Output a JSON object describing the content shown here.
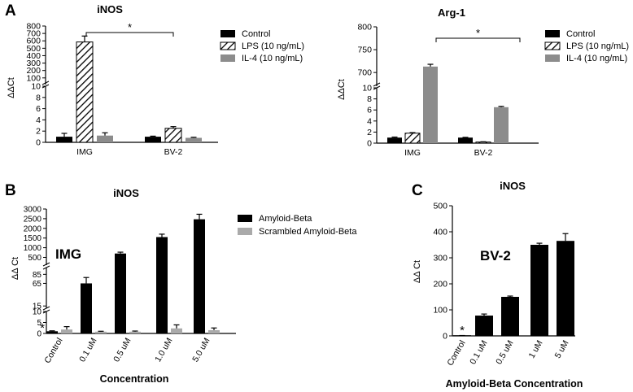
{
  "colors": {
    "black": "#000000",
    "grey": "#8c8c8c",
    "lightgrey": "#aaaaaa",
    "white": "#ffffff"
  },
  "chart_data": [
    {
      "panel": "A",
      "type": "bar",
      "title": "iNOS",
      "ylabel": "ΔΔCt",
      "categories": [
        "IMG",
        "BV-2"
      ],
      "series": [
        {
          "name": "Control",
          "style": "black",
          "values": [
            1.0,
            1.0
          ],
          "errors": [
            0.6,
            0.1
          ]
        },
        {
          "name": "LPS (10 ng/mL)",
          "style": "hatch",
          "values": [
            585,
            2.5
          ],
          "errors": [
            80,
            0.3
          ]
        },
        {
          "name": "IL-4 (10 ng/mL)",
          "style": "grey",
          "values": [
            1.2,
            0.8
          ],
          "errors": [
            0.5,
            0.1
          ]
        }
      ],
      "axis_segments": [
        {
          "range": [
            0,
            10
          ],
          "ticks": [
            0,
            2,
            4,
            6,
            8,
            10
          ]
        },
        {
          "range": [
            10,
            800
          ],
          "ticks": [
            100,
            200,
            300,
            400,
            500,
            600,
            700,
            800
          ]
        }
      ],
      "annotation": "*"
    },
    {
      "panel": "",
      "type": "bar",
      "title": "Arg-1",
      "ylabel": "ΔΔCt",
      "categories": [
        "IMG",
        "BV-2"
      ],
      "series": [
        {
          "name": "Control",
          "style": "black",
          "values": [
            1.0,
            1.0
          ],
          "errors": [
            0.1,
            0.05
          ]
        },
        {
          "name": "LPS (10 ng/mL)",
          "style": "hatch",
          "values": [
            1.8,
            0.2
          ],
          "errors": [
            0.1,
            0.05
          ]
        },
        {
          "name": "IL-4 (10 ng/mL)",
          "style": "grey",
          "values": [
            713,
            6.5
          ],
          "errors": [
            5,
            0.15
          ]
        }
      ],
      "axis_segments": [
        {
          "range": [
            0,
            10
          ],
          "ticks": [
            0,
            2,
            4,
            6,
            8,
            10
          ]
        },
        {
          "range": [
            10,
            800
          ],
          "ticks": [
            700,
            750,
            800
          ]
        }
      ],
      "annotation": "*"
    },
    {
      "panel": "B",
      "type": "bar",
      "title": "iNOS",
      "ylabel": "ΔΔ Ct",
      "xlabel": "Concentration",
      "cell_label": "IMG",
      "categories": [
        "Control",
        "0.1 uM",
        "0.5 uM",
        "1.0 uM",
        "5.0 uM"
      ],
      "series": [
        {
          "name": "Amyloid-Beta",
          "style": "black",
          "values": [
            1.0,
            65,
            700,
            1550,
            2470
          ],
          "errors": [
            0.2,
            13,
            70,
            150,
            260
          ]
        },
        {
          "name": "Scrambled Amyloid-Beta",
          "style": "lightgrey",
          "values": [
            1.8,
            0.8,
            0.8,
            2.3,
            1.5
          ],
          "errors": [
            1.3,
            0.2,
            0.3,
            1.6,
            1.0
          ]
        }
      ],
      "axis_segments": [
        {
          "range": [
            0,
            10
          ],
          "ticks": [
            0,
            5,
            10
          ]
        },
        {
          "range": [
            10,
            100
          ],
          "ticks": [
            15,
            65,
            85
          ]
        },
        {
          "range": [
            100,
            3000
          ],
          "ticks": [
            500,
            1000,
            1500,
            2000,
            2500,
            3000
          ]
        }
      ],
      "annotation": "*"
    },
    {
      "panel": "C",
      "type": "bar",
      "title": "iNOS",
      "ylabel": "ΔΔ Ct",
      "xlabel": "Amyloid-Beta Concentration",
      "cell_label": "BV-2",
      "categories": [
        "Control",
        "0.1 uM",
        "0.5 uM",
        "1 uM",
        "5 uM"
      ],
      "series": [
        {
          "name": "Amyloid-Beta",
          "style": "black",
          "values": [
            1.0,
            78,
            150,
            350,
            365
          ],
          "errors": [
            0.5,
            6,
            3,
            6,
            28
          ]
        }
      ],
      "ylim": [
        0,
        500
      ],
      "ticks": [
        0,
        100,
        200,
        300,
        400,
        500
      ],
      "annotation": "*"
    }
  ]
}
